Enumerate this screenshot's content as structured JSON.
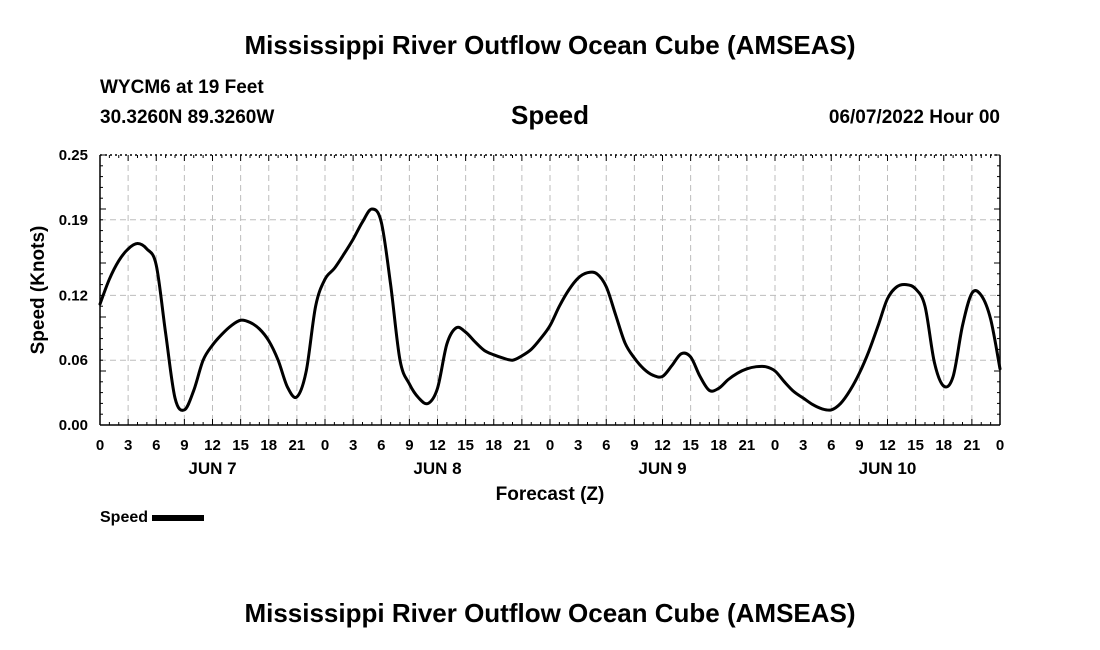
{
  "page_title": "Mississippi River Outflow Ocean Cube (AMSEAS)",
  "header": {
    "station": "WYCM6 at 19 Feet",
    "coordinates": "30.3260N  89.3260W",
    "variable": "Speed",
    "datetime": "06/07/2022 Hour 00"
  },
  "legend": {
    "label": "Speed",
    "color": "#000000"
  },
  "footer_title": "Mississippi River Outflow Ocean Cube (AMSEAS)",
  "chart_data": {
    "type": "line",
    "title": "Speed",
    "xlabel": "Forecast (Z)",
    "ylabel": "Speed (Knots)",
    "xlim": [
      0,
      96
    ],
    "ylim": [
      0,
      0.25
    ],
    "y_ticks": [
      0.0,
      0.06,
      0.12,
      0.19,
      0.25
    ],
    "y_tick_labels": [
      "0.00",
      "0.06",
      "0.12",
      "0.19",
      "0.25"
    ],
    "x_ticks": [
      0,
      3,
      6,
      9,
      12,
      15,
      18,
      21,
      24,
      27,
      30,
      33,
      36,
      39,
      42,
      45,
      48,
      51,
      54,
      57,
      60,
      63,
      66,
      69,
      72,
      75,
      78,
      81,
      84,
      87,
      90,
      93,
      96
    ],
    "x_tick_labels": [
      "0",
      "3",
      "6",
      "9",
      "12",
      "15",
      "18",
      "21",
      "0",
      "3",
      "6",
      "9",
      "12",
      "15",
      "18",
      "21",
      "0",
      "3",
      "6",
      "9",
      "12",
      "15",
      "18",
      "21",
      "0",
      "3",
      "6",
      "9",
      "12",
      "15",
      "18",
      "21",
      "0"
    ],
    "day_labels": [
      {
        "text": "JUN 7",
        "x": 12
      },
      {
        "text": "JUN 8",
        "x": 36
      },
      {
        "text": "JUN 9",
        "x": 60
      },
      {
        "text": "JUN 10",
        "x": 84
      }
    ],
    "grid": true,
    "series": [
      {
        "name": "Speed",
        "color": "#000000",
        "x": [
          0,
          1,
          2,
          3,
          4,
          5,
          6,
          7,
          8,
          9,
          10,
          11,
          12,
          13,
          14,
          15,
          16,
          17,
          18,
          19,
          20,
          21,
          22,
          23,
          24,
          25,
          26,
          27,
          28,
          29,
          30,
          31,
          32,
          33,
          34,
          35,
          36,
          37,
          38,
          39,
          40,
          41,
          42,
          43,
          44,
          45,
          46,
          47,
          48,
          49,
          50,
          51,
          52,
          53,
          54,
          55,
          56,
          57,
          58,
          59,
          60,
          61,
          62,
          63,
          64,
          65,
          66,
          67,
          68,
          69,
          70,
          71,
          72,
          73,
          74,
          75,
          76,
          77,
          78,
          79,
          80,
          81,
          82,
          83,
          84,
          85,
          86,
          87,
          88,
          89,
          90,
          91,
          92,
          93,
          94,
          95,
          96
        ],
        "values": [
          0.112,
          0.135,
          0.152,
          0.163,
          0.168,
          0.163,
          0.148,
          0.085,
          0.025,
          0.014,
          0.032,
          0.06,
          0.074,
          0.084,
          0.092,
          0.097,
          0.095,
          0.089,
          0.078,
          0.06,
          0.035,
          0.026,
          0.05,
          0.11,
          0.135,
          0.145,
          0.158,
          0.172,
          0.188,
          0.2,
          0.188,
          0.13,
          0.06,
          0.038,
          0.025,
          0.02,
          0.034,
          0.075,
          0.09,
          0.086,
          0.077,
          0.069,
          0.065,
          0.062,
          0.06,
          0.064,
          0.07,
          0.08,
          0.092,
          0.11,
          0.125,
          0.136,
          0.141,
          0.14,
          0.128,
          0.102,
          0.076,
          0.062,
          0.052,
          0.046,
          0.045,
          0.055,
          0.066,
          0.063,
          0.045,
          0.032,
          0.034,
          0.042,
          0.048,
          0.052,
          0.054,
          0.054,
          0.05,
          0.04,
          0.031,
          0.025,
          0.019,
          0.015,
          0.014,
          0.02,
          0.032,
          0.048,
          0.068,
          0.092,
          0.117,
          0.128,
          0.13,
          0.126,
          0.11,
          0.058,
          0.036,
          0.045,
          0.092,
          0.122,
          0.12,
          0.098,
          0.052
        ]
      }
    ]
  }
}
